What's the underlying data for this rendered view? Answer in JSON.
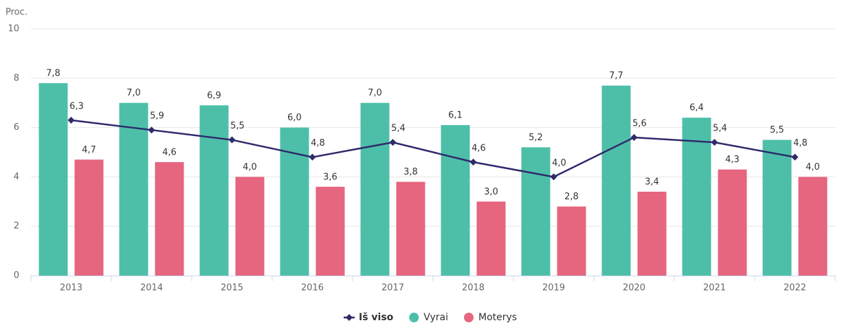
{
  "chart_data": {
    "type": "bar",
    "y_axis_label": "Proc.",
    "categories": [
      "2013",
      "2014",
      "2015",
      "2016",
      "2017",
      "2018",
      "2019",
      "2020",
      "2021",
      "2022"
    ],
    "series": [
      {
        "name": "Iš viso",
        "type": "line",
        "color": "#2e2a6b",
        "values": [
          6.3,
          5.9,
          5.5,
          4.8,
          5.4,
          4.6,
          4.0,
          5.6,
          5.4,
          4.8
        ],
        "value_labels": [
          "6,3",
          "5,9",
          "5,5",
          "4,8",
          "5,4",
          "4,6",
          "4,0",
          "5,6",
          "5,4",
          "4,8"
        ]
      },
      {
        "name": "Vyrai",
        "type": "bar",
        "color": "#4dbfa8",
        "values": [
          7.8,
          7.0,
          6.9,
          6.0,
          7.0,
          6.1,
          5.2,
          7.7,
          6.4,
          5.5
        ],
        "value_labels": [
          "7,8",
          "7,0",
          "6,9",
          "6,0",
          "7,0",
          "6,1",
          "5,2",
          "7,7",
          "6,4",
          "5,5"
        ]
      },
      {
        "name": "Moterys",
        "type": "bar",
        "color": "#e6657f",
        "values": [
          4.7,
          4.6,
          4.0,
          3.6,
          3.8,
          3.0,
          2.8,
          3.4,
          4.3,
          4.0
        ],
        "value_labels": [
          "4,7",
          "4,6",
          "4,0",
          "3,6",
          "3,8",
          "3,0",
          "2,8",
          "3,4",
          "4,3",
          "4,0"
        ]
      }
    ],
    "ylim": [
      0,
      10
    ],
    "yticks": [
      0,
      2,
      4,
      6,
      8,
      10
    ],
    "grid": true,
    "legend": "bottom"
  }
}
